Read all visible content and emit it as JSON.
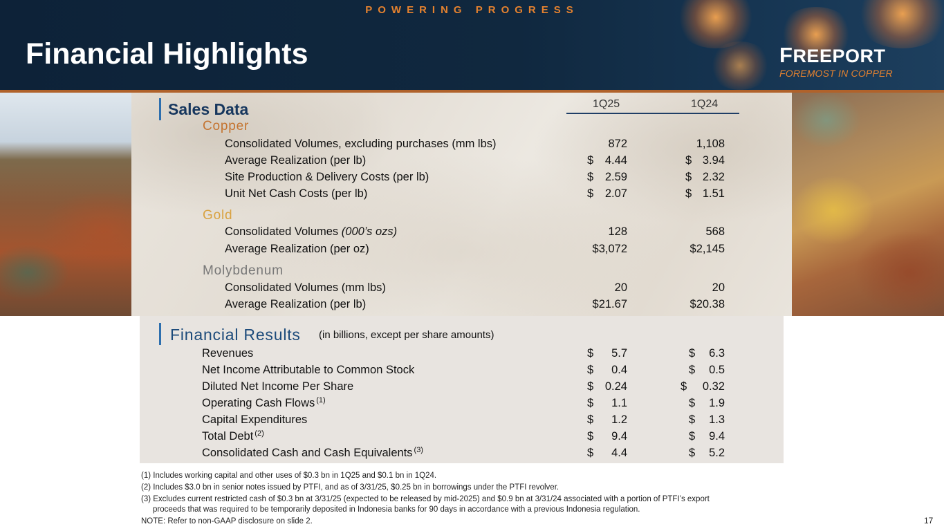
{
  "header": {
    "tagline": "POWERING PROGRESS",
    "title": "Financial Highlights",
    "logo": {
      "name_first": "F",
      "name_rest": "REEPORT",
      "subtitle": "FOREMOST IN COPPER"
    }
  },
  "columns": [
    "1Q25",
    "1Q24"
  ],
  "sales": {
    "title": "Sales Data",
    "categories": [
      {
        "name": "Copper",
        "rows": [
          {
            "label": "Consolidated Volumes, excluding purchases (mm lbs)",
            "cur1": "",
            "v1": "872",
            "cur2": "",
            "v2": "1,108"
          },
          {
            "label": "Average Realization (per lb)",
            "cur1": "$",
            "v1": "4.44",
            "cur2": "$",
            "v2": "3.94"
          },
          {
            "label": "Site Production & Delivery Costs (per lb)",
            "cur1": "$",
            "v1": "2.59",
            "cur2": "$",
            "v2": "2.32"
          },
          {
            "label": "Unit Net Cash Costs (per lb)",
            "cur1": "$",
            "v1": "2.07",
            "cur2": "$",
            "v2": "1.51"
          }
        ]
      },
      {
        "name": "Gold",
        "rows": [
          {
            "label": "Consolidated Volumes",
            "label_italic": "(000’s ozs)",
            "cur1": "",
            "v1": "128",
            "cur2": "",
            "v2": "568"
          },
          {
            "label": "Average Realization (per oz)",
            "cur1": "",
            "v1": "$3,072",
            "cur2": "",
            "v2": "$2,145"
          }
        ]
      },
      {
        "name": "Molybdenum",
        "rows": [
          {
            "label": "Consolidated Volumes (mm lbs)",
            "cur1": "",
            "v1": "20",
            "cur2": "",
            "v2": "20"
          },
          {
            "label": "Average Realization (per lb)",
            "cur1": "",
            "v1": "$21.67",
            "cur2": "",
            "v2": "$20.38"
          }
        ]
      }
    ]
  },
  "financial": {
    "title": "Financial Results",
    "note": "(in billions, except per share amounts)",
    "rows": [
      {
        "label": "Revenues",
        "sup": "",
        "cur1": "$",
        "v1": "5.7",
        "cur2": "$",
        "v2": "6.3"
      },
      {
        "label": "Net Income Attributable to Common Stock",
        "sup": "",
        "cur1": "$",
        "v1": "0.4",
        "cur2": "$",
        "v2": "0.5"
      },
      {
        "label": "Diluted Net Income Per Share",
        "sup": "",
        "cur1": "$",
        "v1": "0.24",
        "cur2": "$",
        "v2": "0.32"
      },
      {
        "label": "Operating Cash Flows",
        "sup": "(1)",
        "cur1": "$",
        "v1": "1.1",
        "cur2": "$",
        "v2": "1.9"
      },
      {
        "label": "Capital Expenditures",
        "sup": "",
        "cur1": "$",
        "v1": "1.2",
        "cur2": "$",
        "v2": "1.3"
      },
      {
        "label": "Total Debt",
        "sup": "(2)",
        "cur1": "$",
        "v1": "9.4",
        "cur2": "$",
        "v2": "9.4"
      },
      {
        "label": "Consolidated Cash and Cash Equivalents",
        "sup": "(3)",
        "cur1": "$",
        "v1": "4.4",
        "cur2": "$",
        "v2": "5.2"
      }
    ]
  },
  "footnotes": {
    "f1": "(1) Includes working capital and other uses of $0.3 bn in 1Q25 and $0.1 bn in 1Q24.",
    "f2": "(2) Includes $3.0 bn in senior notes issued by PTFI, and as of 3/31/25, $0.25 bn in borrowings under the PTFI revolver.",
    "f3a": "(3) Excludes current restricted cash of $0.3 bn at 3/31/25 (expected to be released by mid-2025) and $0.9 bn at 3/31/24 associated with a portion of PTFI’s export",
    "f3b": "proceeds that was required to be temporarily deposited in Indonesia banks for 90 days in accordance with a previous Indonesia regulation.",
    "note": "NOTE: Refer to non-GAAP disclosure on slide 2."
  },
  "page_number": "17",
  "colors": {
    "navy": "#0d2238",
    "orange": "#e5822f",
    "accent_blue": "#2e6fae",
    "copper": "#c4732f",
    "gold": "#d9a241"
  }
}
